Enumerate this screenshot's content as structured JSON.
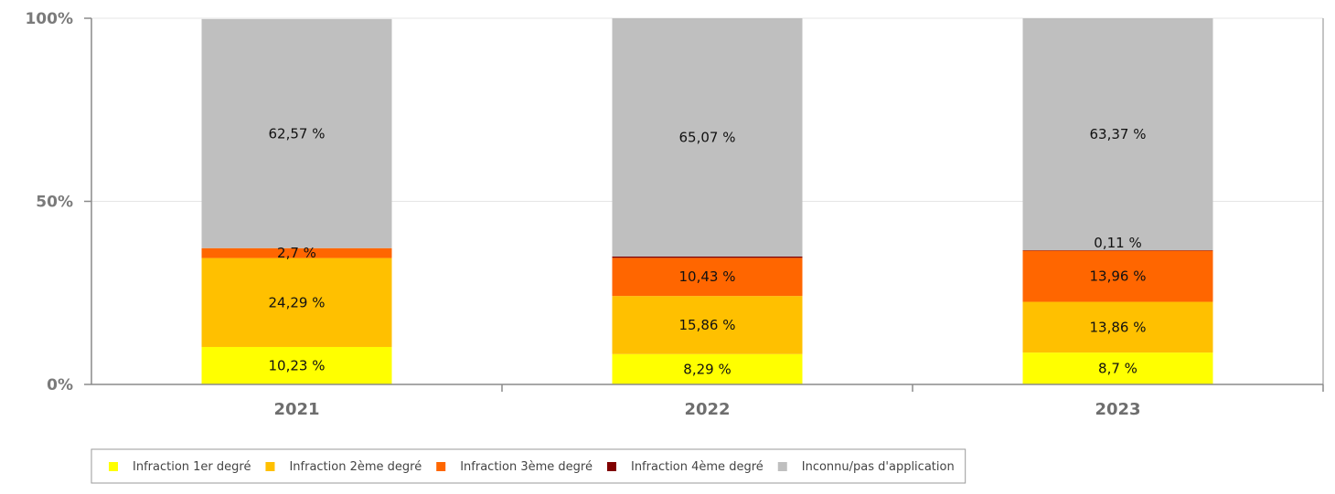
{
  "chart_data": {
    "type": "bar",
    "stacked": true,
    "percent": true,
    "categories": [
      "2021",
      "2022",
      "2023"
    ],
    "series": [
      {
        "name": "Infraction 1er degré",
        "color": "#ffff00",
        "values": [
          10.23,
          8.29,
          8.7
        ],
        "labels": [
          "10,23 %",
          "8,29 %",
          "8,7 %"
        ]
      },
      {
        "name": "Infraction 2ème degré",
        "color": "#ffc000",
        "values": [
          24.29,
          15.86,
          13.86
        ],
        "labels": [
          "24,29 %",
          "15,86 %",
          "13,86 %"
        ]
      },
      {
        "name": "Infraction 3ème degré",
        "color": "#ff6600",
        "values": [
          2.7,
          10.43,
          13.96
        ],
        "labels": [
          "2,7 %",
          "10,43 %",
          "13,96 %"
        ]
      },
      {
        "name": "Infraction 4ème degré",
        "color": "#800000",
        "values": [
          0,
          0.35,
          0.11
        ],
        "labels": [
          "",
          "",
          "0,11 %"
        ]
      },
      {
        "name": "Inconnu/pas d'application",
        "color": "#bfbfbf",
        "values": [
          62.57,
          65.07,
          63.37
        ],
        "labels": [
          "62,57 %",
          "65,07 %",
          "63,37 %"
        ]
      }
    ],
    "yticks": [
      "0%",
      "50%",
      "100%"
    ],
    "ylim": [
      0,
      100
    ],
    "grid": true,
    "legend": "bottom",
    "title": "",
    "xlabel": "",
    "ylabel": ""
  }
}
